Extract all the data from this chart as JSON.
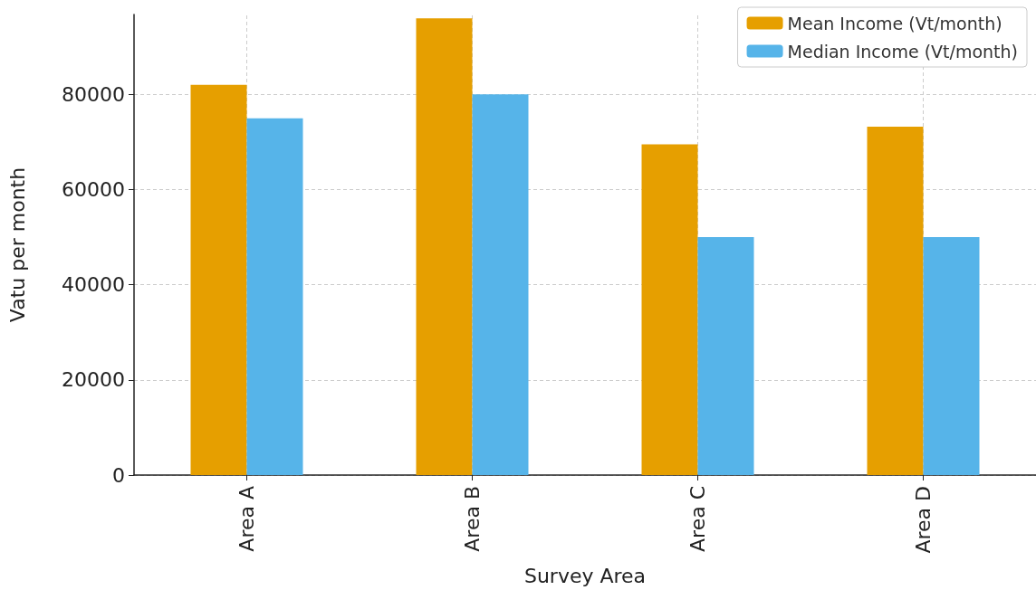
{
  "chart_data": {
    "type": "bar",
    "xlabel": "Survey Area",
    "ylabel": "Vatu per month",
    "categories": [
      "Area A",
      "Area B",
      "Area C",
      "Area D"
    ],
    "series": [
      {
        "name": "Mean Income (Vt/month)",
        "color": "#e69f00",
        "values": [
          82000,
          96000,
          69500,
          73200
        ]
      },
      {
        "name": "Median Income (Vt/month)",
        "color": "#56b4e9",
        "values": [
          75000,
          80000,
          50000,
          50000
        ]
      }
    ],
    "ylim": [
      0,
      96800
    ],
    "yticks": [
      0,
      {
        "value": 20000,
        "label": "20000"
      },
      {
        "value": 40000,
        "label": "40000"
      },
      {
        "value": 60000,
        "label": "60000"
      },
      {
        "value": 80000,
        "label": "80000"
      }
    ],
    "grid": true,
    "legend": "top right"
  }
}
